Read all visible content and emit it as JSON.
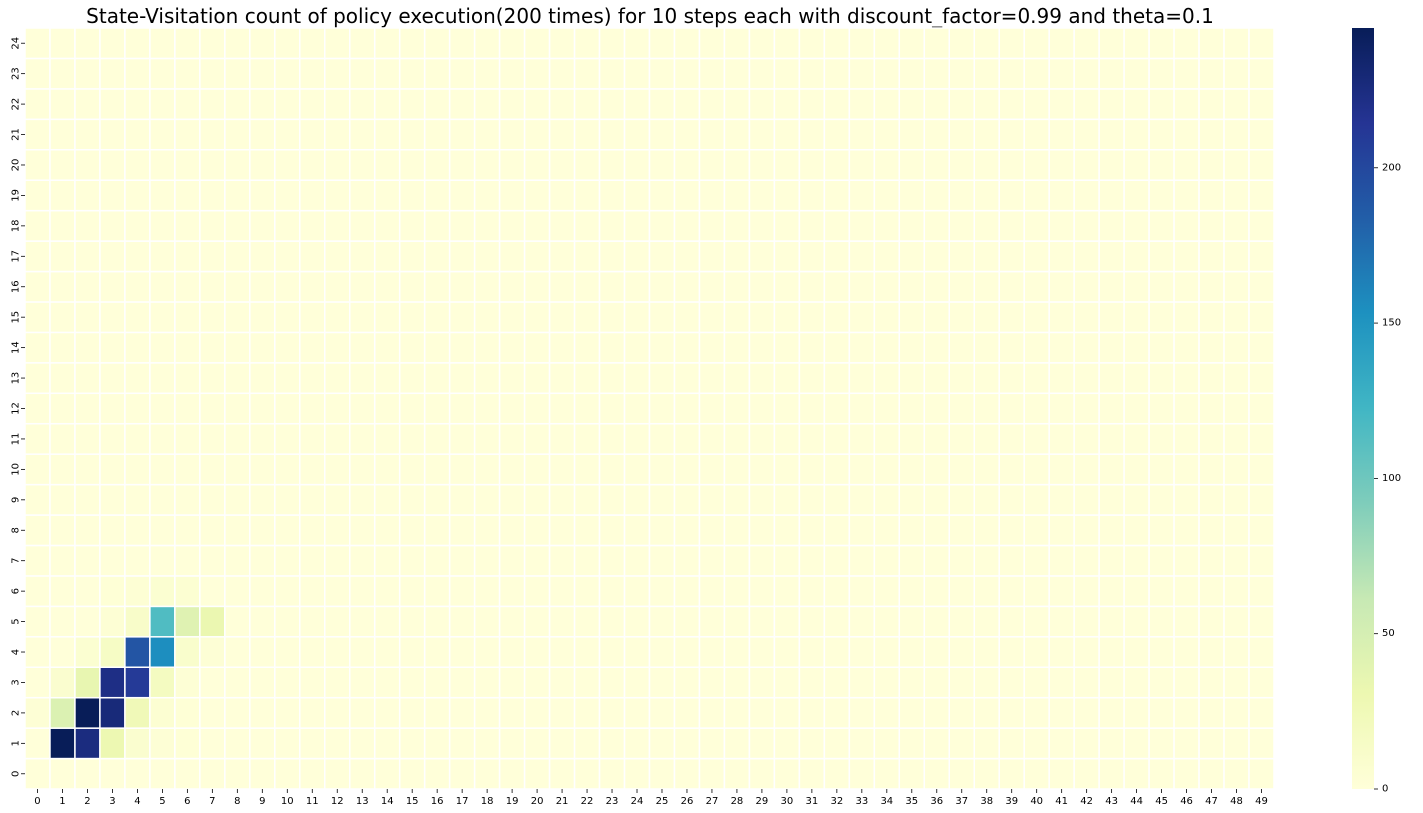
{
  "chart_data": {
    "type": "heatmap",
    "title": "State-Visitation count of policy execution(200 times) for 10 steps each with discount_factor=0.99 and theta=0.1",
    "xlabel": "",
    "ylabel": "",
    "x_ticks": [
      "0",
      "1",
      "2",
      "3",
      "4",
      "5",
      "6",
      "7",
      "8",
      "9",
      "10",
      "11",
      "12",
      "13",
      "14",
      "15",
      "16",
      "17",
      "18",
      "19",
      "20",
      "21",
      "22",
      "23",
      "24",
      "25",
      "26",
      "27",
      "28",
      "29",
      "30",
      "31",
      "32",
      "33",
      "34",
      "35",
      "36",
      "37",
      "38",
      "39",
      "40",
      "41",
      "42",
      "43",
      "44",
      "45",
      "46",
      "47",
      "48",
      "49"
    ],
    "y_ticks": [
      "0",
      "1",
      "2",
      "3",
      "4",
      "5",
      "6",
      "7",
      "8",
      "9",
      "10",
      "11",
      "12",
      "13",
      "14",
      "15",
      "16",
      "17",
      "18",
      "19",
      "20",
      "21",
      "22",
      "23",
      "24"
    ],
    "y_order": "bottom-to-top",
    "colormap": "YlGnBu",
    "vmin": 0,
    "vmax": 245,
    "colorbar_ticks": [
      0,
      50,
      100,
      150,
      200
    ],
    "grid_lines": "white",
    "background_value": 0,
    "cells": [
      {
        "x": 1,
        "y": 1,
        "value": 245
      },
      {
        "x": 2,
        "y": 1,
        "value": 225
      },
      {
        "x": 3,
        "y": 1,
        "value": 30
      },
      {
        "x": 4,
        "y": 1,
        "value": 8
      },
      {
        "x": 5,
        "y": 1,
        "value": 3
      },
      {
        "x": 6,
        "y": 1,
        "value": 2
      },
      {
        "x": 0,
        "y": 2,
        "value": 3
      },
      {
        "x": 1,
        "y": 2,
        "value": 45
      },
      {
        "x": 2,
        "y": 2,
        "value": 245
      },
      {
        "x": 3,
        "y": 2,
        "value": 228
      },
      {
        "x": 4,
        "y": 2,
        "value": 25
      },
      {
        "x": 5,
        "y": 2,
        "value": 5
      },
      {
        "x": 6,
        "y": 2,
        "value": 2
      },
      {
        "x": 1,
        "y": 3,
        "value": 8
      },
      {
        "x": 2,
        "y": 3,
        "value": 35
      },
      {
        "x": 3,
        "y": 3,
        "value": 222
      },
      {
        "x": 4,
        "y": 3,
        "value": 210
      },
      {
        "x": 5,
        "y": 3,
        "value": 18
      },
      {
        "x": 6,
        "y": 3,
        "value": 3
      },
      {
        "x": 2,
        "y": 4,
        "value": 6
      },
      {
        "x": 3,
        "y": 4,
        "value": 15
      },
      {
        "x": 4,
        "y": 4,
        "value": 190
      },
      {
        "x": 5,
        "y": 4,
        "value": 155
      },
      {
        "x": 6,
        "y": 4,
        "value": 10
      },
      {
        "x": 7,
        "y": 4,
        "value": 3
      },
      {
        "x": 3,
        "y": 5,
        "value": 4
      },
      {
        "x": 4,
        "y": 5,
        "value": 12
      },
      {
        "x": 5,
        "y": 5,
        "value": 115
      },
      {
        "x": 6,
        "y": 5,
        "value": 42
      },
      {
        "x": 7,
        "y": 5,
        "value": 32
      },
      {
        "x": 3,
        "y": 6,
        "value": 2
      },
      {
        "x": 4,
        "y": 6,
        "value": 4
      },
      {
        "x": 5,
        "y": 6,
        "value": 6
      },
      {
        "x": 6,
        "y": 6,
        "value": 5
      }
    ]
  }
}
